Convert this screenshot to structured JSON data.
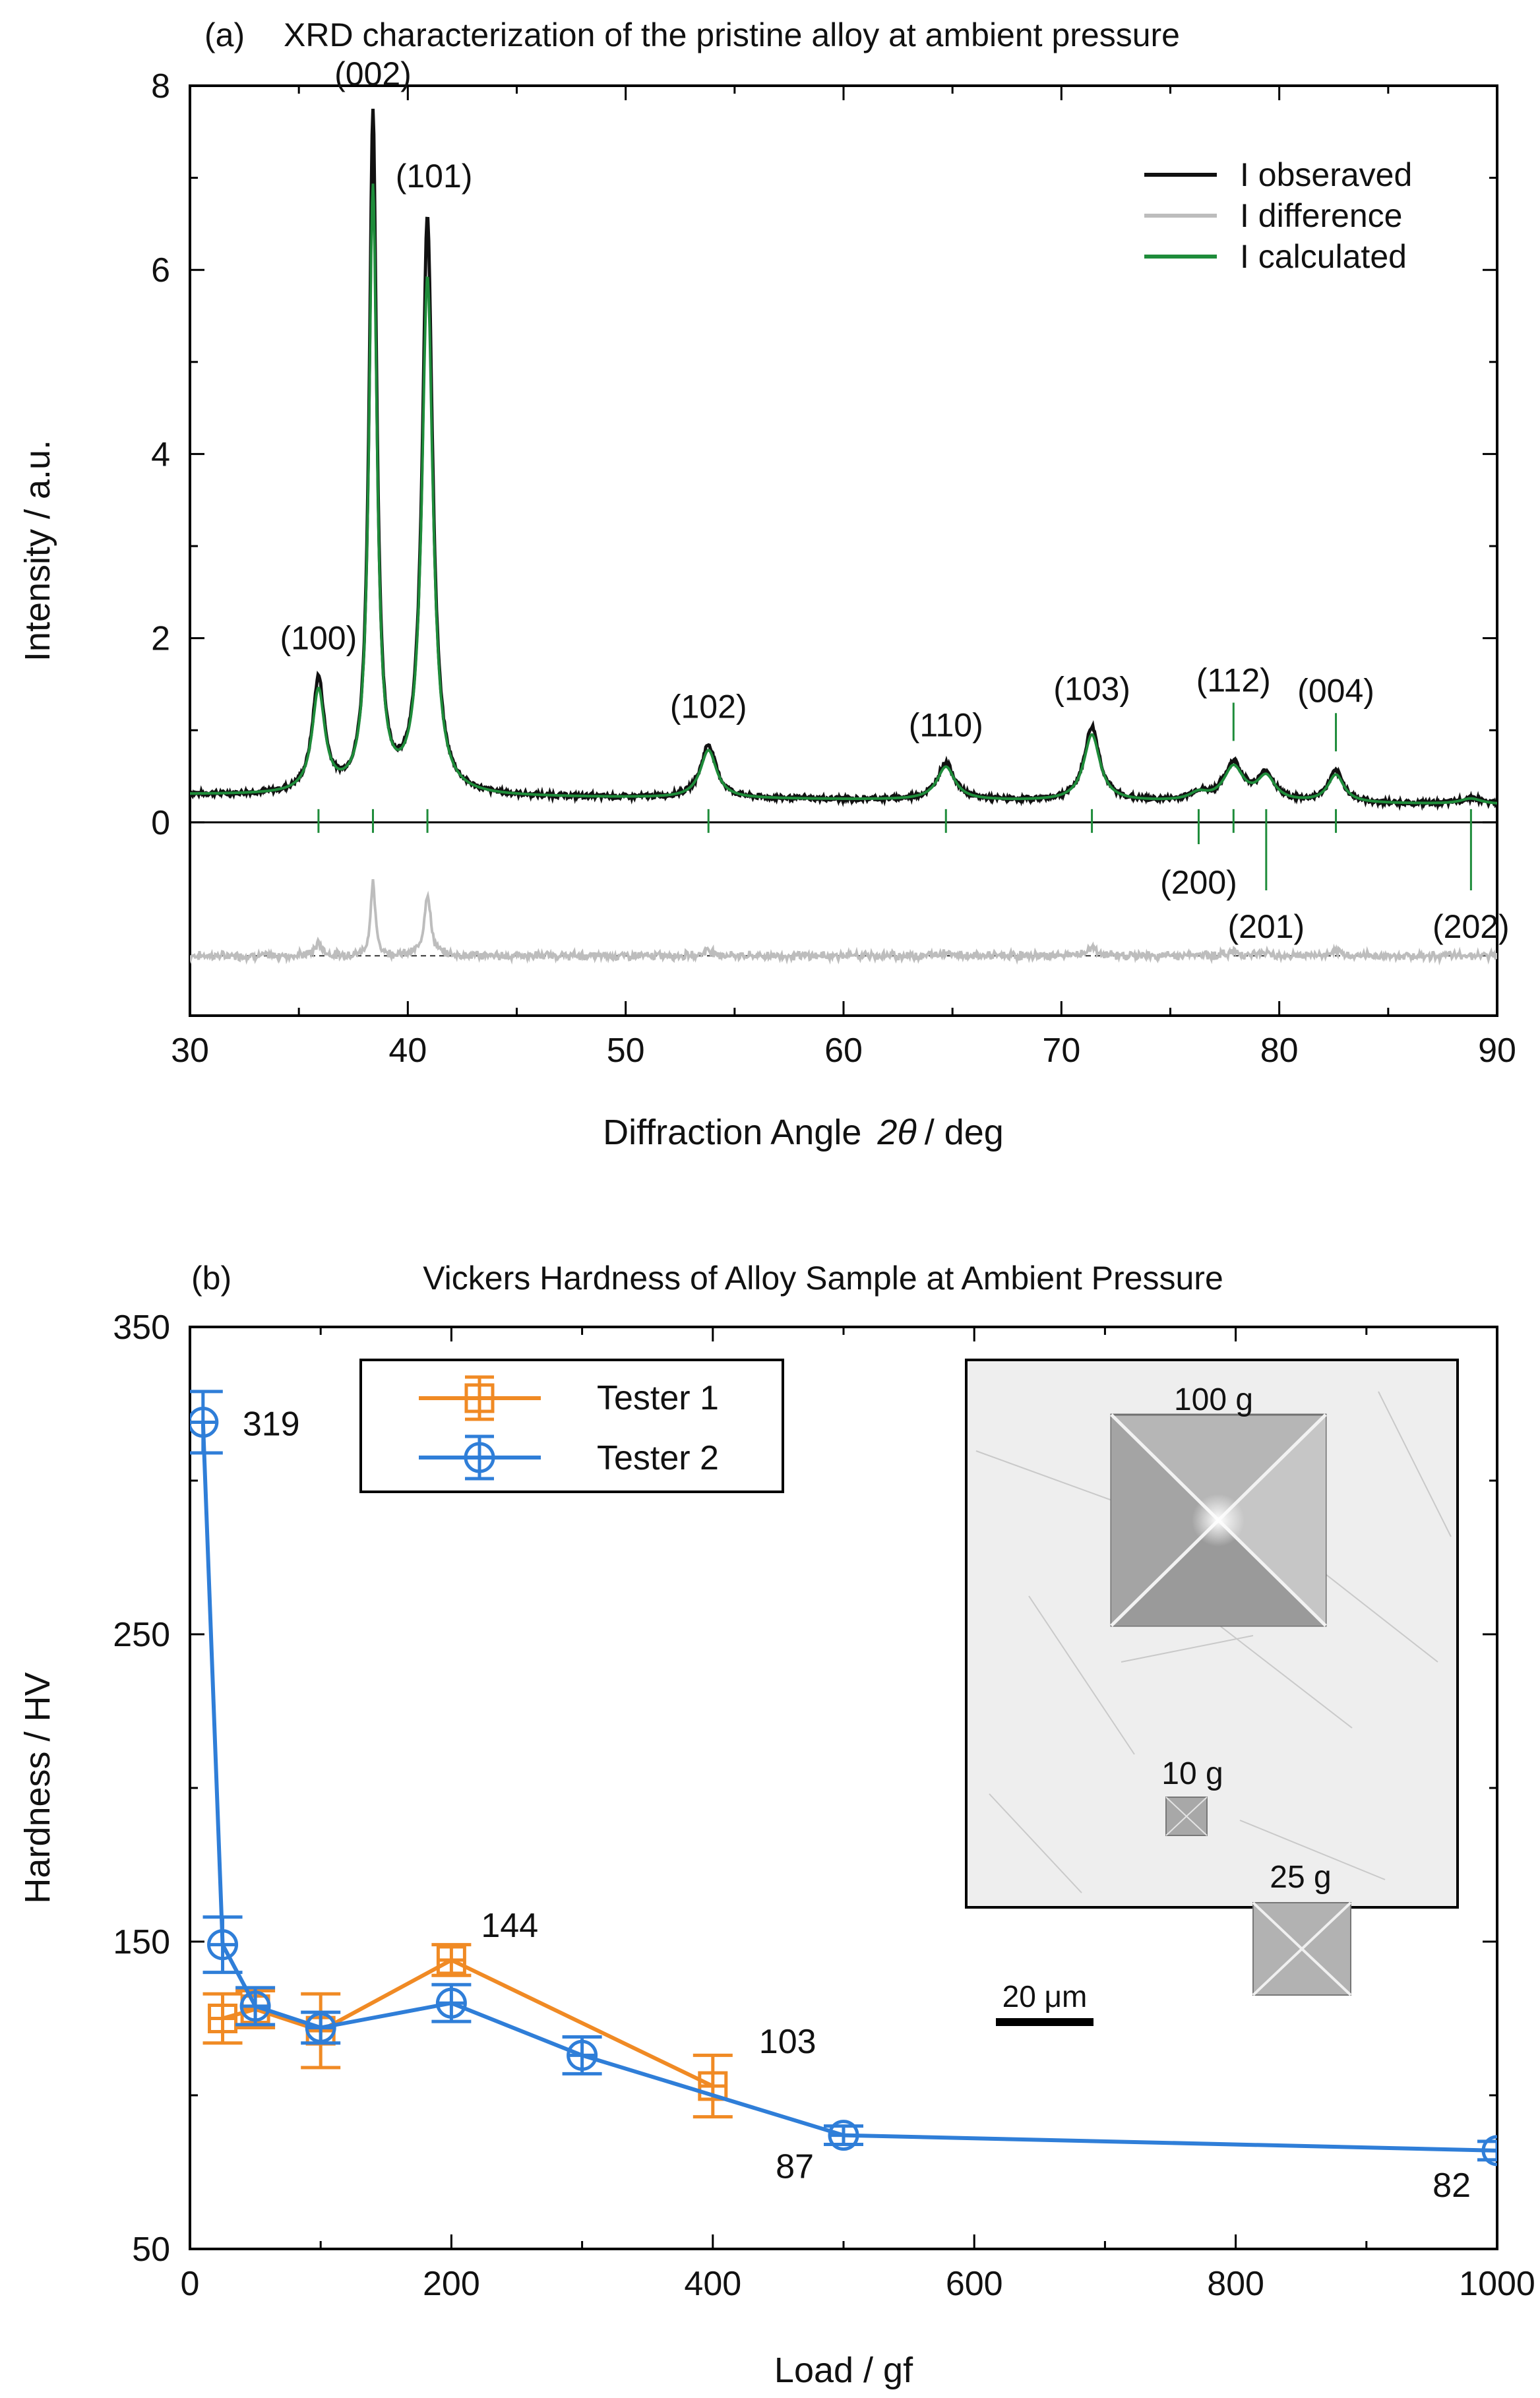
{
  "colors": {
    "observed": "#111111",
    "difference": "#bdbdbd",
    "calculated": "#1e8c3a",
    "tester1": "#f08a24",
    "tester2": "#2f7ed8",
    "axis": "#000000"
  },
  "chart_data": [
    {
      "type": "line",
      "panel_label": "(a)",
      "title": "XRD characterization of the pristine alloy at ambient pressure",
      "xlabel_main": "Diffraction Angle",
      "xlabel_theta": "2θ",
      "xlabel_unit": "/ deg",
      "ylabel": "Intensity / a.u.",
      "xlim": [
        30,
        90
      ],
      "ylim": [
        -2.1,
        8
      ],
      "xticks": [
        "30",
        "40",
        "50",
        "60",
        "70",
        "80",
        "90"
      ],
      "yticks": [
        "0",
        "2",
        "4",
        "6",
        "8"
      ],
      "baseline": 0.3,
      "diff_offset": -1.45,
      "legend": [
        "I obseraved",
        "I difference",
        "I calculated"
      ],
      "peaks": [
        {
          "label": "(100)",
          "x": 35.9,
          "y": 1.1,
          "w": 0.35
        },
        {
          "label": "(002)",
          "x": 38.4,
          "y": 6.55,
          "w": 0.22
        },
        {
          "label": "(101)",
          "x": 40.9,
          "y": 5.6,
          "w": 0.3
        },
        {
          "label": "(102)",
          "x": 53.8,
          "y": 0.52,
          "w": 0.45
        },
        {
          "label": "(110)",
          "x": 64.7,
          "y": 0.36,
          "w": 0.5
        },
        {
          "label": "(103)",
          "x": 71.4,
          "y": 0.72,
          "w": 0.45
        },
        {
          "label": "(200)",
          "x": 76.3,
          "y": 0.08,
          "w": 0.5
        },
        {
          "label": "(112)",
          "x": 77.9,
          "y": 0.37,
          "w": 0.55
        },
        {
          "label": "(201)",
          "x": 79.4,
          "y": 0.26,
          "w": 0.5
        },
        {
          "label": "(004)",
          "x": 82.6,
          "y": 0.3,
          "w": 0.45
        },
        {
          "label": "(202)",
          "x": 88.8,
          "y": 0.06,
          "w": 0.6
        }
      ]
    },
    {
      "type": "line",
      "panel_label": "(b)",
      "title": "Vickers Hardness of Alloy Sample at Ambient Pressure",
      "xlabel": "Load / gf",
      "ylabel": "Hardness / HV",
      "xlim": [
        0,
        1000
      ],
      "ylim": [
        50,
        350
      ],
      "xticks": [
        "0",
        "200",
        "400",
        "600",
        "800",
        "1000"
      ],
      "yticks": [
        "50",
        "150",
        "250",
        "350"
      ],
      "series": [
        {
          "name": "Tester 1",
          "marker": "square",
          "x": [
            25,
            50,
            100,
            200,
            400
          ],
          "y": [
            125,
            128,
            121,
            144,
            103
          ],
          "err": [
            8,
            6,
            12,
            5,
            10
          ]
        },
        {
          "name": "Tester 2",
          "marker": "circle",
          "x": [
            10,
            25,
            50,
            100,
            200,
            300,
            500,
            1000
          ],
          "y": [
            319,
            149,
            129,
            122,
            130,
            113,
            87,
            82
          ],
          "err": [
            10,
            9,
            6,
            5,
            6,
            6,
            3,
            3
          ]
        }
      ],
      "data_labels": [
        {
          "text": "319",
          "series": "Tester 2"
        },
        {
          "text": "144",
          "series": "Tester 1"
        },
        {
          "text": "103",
          "series": "Tester 1"
        },
        {
          "text": "87",
          "series": "Tester 2"
        },
        {
          "text": "82",
          "series": "Tester 2"
        }
      ],
      "inset": {
        "indent_labels": [
          "100 g",
          "10 g",
          "25 g"
        ],
        "scale_bar": "20 μm"
      }
    }
  ]
}
